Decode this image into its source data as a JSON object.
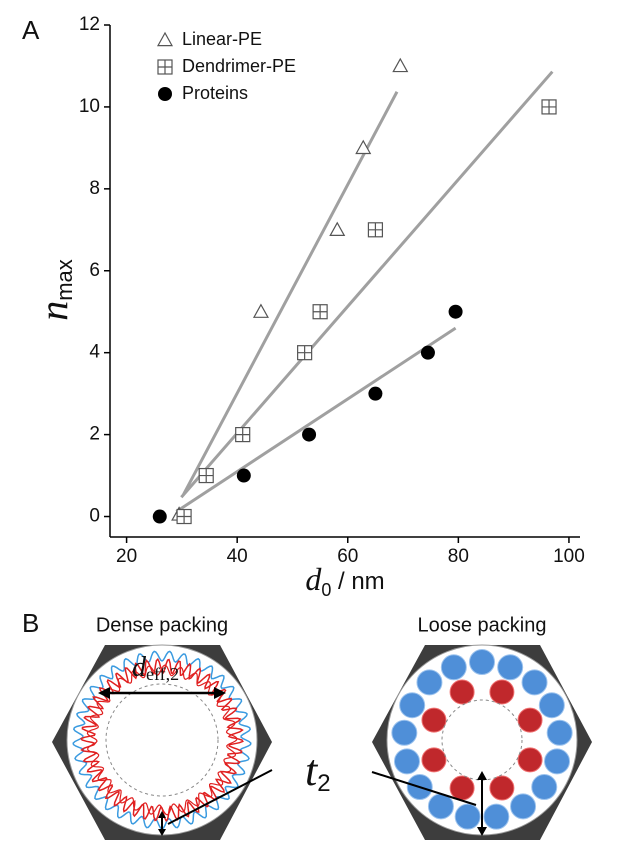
{
  "chart_data": {
    "type": "scatter",
    "panel_label": "A",
    "ylabel": "n",
    "ylabel_sub": "max",
    "xlabel": "d",
    "xlabel_sub": "0",
    "xlabel_unit": " / nm",
    "xlim": [
      17,
      102
    ],
    "ylim": [
      -0.5,
      12
    ],
    "xticks": [
      20,
      40,
      60,
      80,
      100
    ],
    "yticks": [
      0,
      2,
      4,
      6,
      8,
      10,
      12
    ],
    "series": [
      {
        "name": "Linear-PE",
        "marker": "triangle",
        "color": "#555555",
        "x": [
          29.5,
          44.3,
          58.1,
          62.8,
          69.5
        ],
        "values": [
          0.05,
          5,
          7,
          9,
          11
        ]
      },
      {
        "name": "Dendrimer-PE",
        "marker": "square-cross",
        "color": "#555555",
        "x": [
          30.4,
          34.4,
          41,
          52.2,
          55,
          65,
          96.4
        ],
        "values": [
          0,
          1,
          2,
          4,
          5,
          7,
          10
        ]
      },
      {
        "name": "Proteins",
        "marker": "circle",
        "color": "#000000",
        "x": [
          26,
          41.2,
          53,
          65,
          74.5,
          79.5
        ],
        "values": [
          0,
          1,
          2,
          3,
          4,
          5
        ]
      }
    ],
    "fit_lines": [
      {
        "color": "#a0a0a0",
        "x": [
          30.3,
          68.9
        ],
        "values": [
          0.54,
          10.37
        ]
      },
      {
        "color": "#a0a0a0",
        "x": [
          29.9,
          97
        ],
        "values": [
          0.47,
          10.86
        ]
      },
      {
        "color": "#a0a0a0",
        "x": [
          29,
          79.5
        ],
        "values": [
          0.12,
          4.6
        ]
      }
    ]
  },
  "diagram": {
    "panel_label": "B",
    "left_title": "Dense packing",
    "right_title": "Loose packing",
    "diameter_label": "d",
    "diameter_sub": "eff,2",
    "thickness_label": "t",
    "thickness_sub": "2"
  }
}
